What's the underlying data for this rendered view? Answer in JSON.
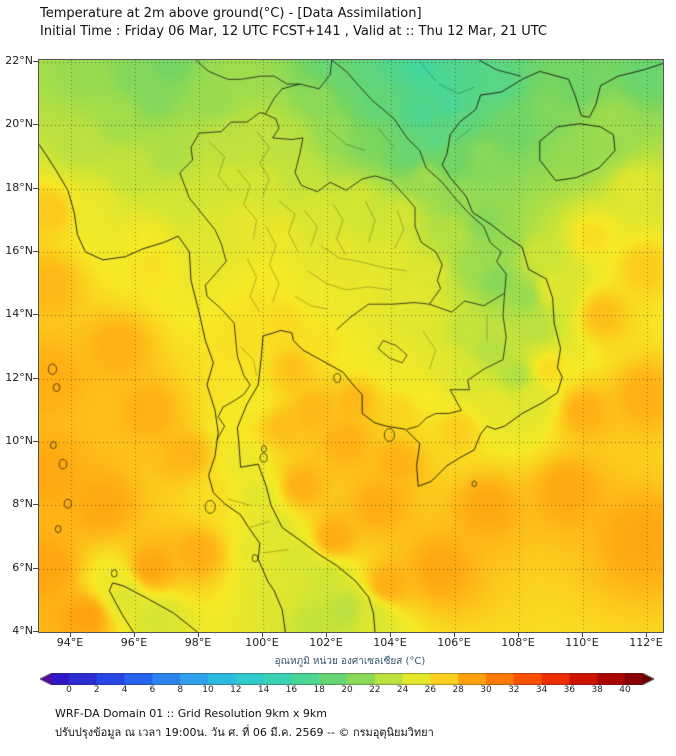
{
  "header": {
    "title": "Temperature at 2m above ground(°C) - [Data Assimilation]",
    "subtitle": "Initial Time : Friday 06 Mar, 12 UTC FCST+141 , Valid at :: Thu 12 Mar, 21 UTC"
  },
  "colorbar": {
    "label": "อุณหภูมิ หน่วย องศาเซลเซียส (°C)",
    "min": 0,
    "max": 40,
    "ticks": [
      0,
      2,
      4,
      6,
      8,
      10,
      12,
      14,
      16,
      18,
      20,
      22,
      24,
      26,
      28,
      30,
      32,
      34,
      36,
      38,
      40
    ],
    "stops": [
      [
        0,
        "#2e22c8"
      ],
      [
        4,
        "#2453ee"
      ],
      [
        8,
        "#2f95ef"
      ],
      [
        12,
        "#2cc6da"
      ],
      [
        16,
        "#3fd6a4"
      ],
      [
        20,
        "#74d563"
      ],
      [
        24,
        "#d2e534"
      ],
      [
        26,
        "#f7e926"
      ],
      [
        28,
        "#ffb516"
      ],
      [
        30,
        "#ff8d08"
      ],
      [
        32,
        "#ff6400"
      ],
      [
        34,
        "#f93c00"
      ],
      [
        36,
        "#e31c00"
      ],
      [
        38,
        "#bc0700"
      ],
      [
        40,
        "#940000"
      ]
    ]
  },
  "footer": {
    "line1": "WRF-DA Domain 01 :: Grid Resolution 9km x 9km",
    "line2": "ปรับปรุงข้อมูล ณ เวลา 19:00น. วัน ศ. ที่ 06 มี.ค. 2569 -- © กรมอุตุนิยมวิทยา"
  },
  "chart_data": {
    "type": "heatmap",
    "title": "Temperature at 2m above ground(°C) - [Data Assimilation]",
    "units": "°C",
    "lon_range": [
      93,
      112.5
    ],
    "lat_range": [
      4,
      22.06
    ],
    "lon_ticks": {
      "values": [
        94,
        96,
        98,
        100,
        102,
        104,
        106,
        108,
        110,
        112
      ],
      "labels": [
        "94°E",
        "96°E",
        "98°E",
        "100°E",
        "102°E",
        "104°E",
        "106°E",
        "108°E",
        "110°E",
        "112°E"
      ]
    },
    "lat_ticks": {
      "values": [
        22,
        20,
        18,
        16,
        14,
        12,
        10,
        8,
        6,
        4
      ],
      "labels": [
        "22°N",
        "20°N",
        "18°N",
        "16°N",
        "14°N",
        "12°N",
        "10°N",
        "8°N",
        "6°N",
        "4°N"
      ]
    },
    "colorbar_range": [
      0,
      40
    ],
    "colorbar_tick_step": 2,
    "temperature_points_lon_lat_degC": [
      [
        93.3,
        6,
        28.8
      ],
      [
        93.3,
        9,
        28.6
      ],
      [
        93.3,
        12,
        28.3
      ],
      [
        93.3,
        15,
        27.9
      ],
      [
        93.4,
        17.3,
        27.2
      ],
      [
        95.5,
        13,
        28.2
      ],
      [
        96.5,
        11,
        28.2
      ],
      [
        97.6,
        9.6,
        28.0
      ],
      [
        95.0,
        8,
        28.6
      ],
      [
        96.5,
        6,
        28.7
      ],
      [
        94.5,
        4.5,
        28.9
      ],
      [
        98.0,
        6.5,
        28.3
      ],
      [
        100.9,
        12.3,
        27.5
      ],
      [
        101.6,
        11,
        27.9
      ],
      [
        102.6,
        10,
        28.2
      ],
      [
        101.2,
        8.6,
        28.2
      ],
      [
        102.2,
        7,
        28.4
      ],
      [
        103.6,
        8,
        28.4
      ],
      [
        104.2,
        9.4,
        28.1
      ],
      [
        102.9,
        11.3,
        27.9
      ],
      [
        100.6,
        10.5,
        27.6
      ],
      [
        107.0,
        8,
        28.6
      ],
      [
        109.5,
        8.5,
        28.6
      ],
      [
        111.8,
        7,
        28.7
      ],
      [
        105.5,
        6,
        28.7
      ],
      [
        103.9,
        5.5,
        28.3
      ],
      [
        110.0,
        11,
        28.2
      ],
      [
        111.9,
        11.5,
        28.2
      ],
      [
        110.6,
        14,
        27.6
      ],
      [
        111.9,
        15.5,
        27.1
      ],
      [
        110.3,
        16.5,
        26.4
      ],
      [
        111.6,
        18,
        24.8
      ],
      [
        110.9,
        20.1,
        21.8
      ],
      [
        111.9,
        21.6,
        19.3
      ],
      [
        109.9,
        21.3,
        19.8
      ],
      [
        107.9,
        19.9,
        19.8
      ],
      [
        106.9,
        19.1,
        20.8
      ],
      [
        108.9,
        20.5,
        20.5
      ],
      [
        94.5,
        21.6,
        21.5
      ],
      [
        96.0,
        21.6,
        20.6
      ],
      [
        97.1,
        21.9,
        20.0
      ],
      [
        95.5,
        20.2,
        22.0
      ],
      [
        96.6,
        20.9,
        20.6
      ],
      [
        94.3,
        19.5,
        23.0
      ],
      [
        95.8,
        18.6,
        23.4
      ],
      [
        97.1,
        19.1,
        22.4
      ],
      [
        98.4,
        20.9,
        21.6
      ],
      [
        99.5,
        21.6,
        21.8
      ],
      [
        94.7,
        17.4,
        25.3
      ],
      [
        96.3,
        16.3,
        25.8
      ],
      [
        97.6,
        17.6,
        24.0
      ],
      [
        96.5,
        15.6,
        26.3
      ],
      [
        98.8,
        19.3,
        23.2
      ],
      [
        99.9,
        19.8,
        23.2
      ],
      [
        100.9,
        19.5,
        23.0
      ],
      [
        98.9,
        18.3,
        24.0
      ],
      [
        100.0,
        18,
        24.2
      ],
      [
        101.1,
        18.4,
        23.4
      ],
      [
        99.5,
        17,
        25.1
      ],
      [
        100.5,
        16.5,
        25.4
      ],
      [
        98.4,
        16.6,
        24.8
      ],
      [
        101.8,
        17.2,
        24.4
      ],
      [
        103.0,
        17.6,
        24.0
      ],
      [
        104.3,
        17.1,
        24.2
      ],
      [
        102.5,
        16,
        25.1
      ],
      [
        104.0,
        15.8,
        25.0
      ],
      [
        105.1,
        15.3,
        24.7
      ],
      [
        102.0,
        15,
        25.4
      ],
      [
        103.2,
        14.8,
        25.3
      ],
      [
        104.7,
        14.6,
        25.0
      ],
      [
        100.2,
        15.3,
        26.0
      ],
      [
        99.8,
        14.2,
        26.3
      ],
      [
        100.6,
        13.8,
        26.6
      ],
      [
        99.6,
        12.4,
        26.2
      ],
      [
        99.8,
        11.3,
        25.9
      ],
      [
        99.4,
        13.3,
        26.4
      ],
      [
        101.9,
        13.1,
        26.3
      ],
      [
        102.9,
        12.7,
        25.9
      ],
      [
        103.8,
        13,
        25.2
      ],
      [
        104.4,
        12.4,
        25.6
      ],
      [
        105.5,
        12.5,
        25.0
      ],
      [
        106.3,
        12.1,
        24.4
      ],
      [
        105.1,
        11.4,
        26.0
      ],
      [
        106.1,
        10.4,
        27.0
      ],
      [
        105.1,
        13.8,
        24.8
      ],
      [
        106.3,
        13.5,
        23.4
      ],
      [
        107.1,
        12.9,
        22.8
      ],
      [
        107.9,
        12.1,
        22.6
      ],
      [
        108.4,
        11.4,
        24.8
      ],
      [
        107.3,
        11.2,
        25.2
      ],
      [
        108.9,
        12.3,
        26.5
      ],
      [
        104.3,
        10.9,
        26.8
      ],
      [
        102.2,
        19.8,
        21.4
      ],
      [
        103.3,
        19.5,
        20.4
      ],
      [
        104.5,
        19.1,
        19.2
      ],
      [
        101.8,
        20.9,
        21.0
      ],
      [
        103.5,
        20.6,
        18.8
      ],
      [
        104.9,
        20.4,
        17.2
      ],
      [
        105.9,
        20.6,
        16.8
      ],
      [
        105.3,
        19.6,
        18.2
      ],
      [
        105.9,
        18.9,
        19.8
      ],
      [
        105.1,
        18.3,
        21.8
      ],
      [
        106.2,
        17.6,
        21.4
      ],
      [
        106.9,
        16.9,
        20.8
      ],
      [
        107.5,
        16.3,
        21.4
      ],
      [
        105.9,
        16.6,
        22.8
      ],
      [
        106.6,
        15.6,
        21.8
      ],
      [
        107.3,
        15.1,
        20.8
      ],
      [
        108.2,
        14.6,
        21.6
      ],
      [
        108.6,
        15.9,
        23.8
      ],
      [
        104.9,
        21.9,
        16.3
      ],
      [
        105.6,
        21.3,
        16.9
      ],
      [
        106.4,
        21.6,
        17.4
      ],
      [
        107.4,
        21.3,
        17.9
      ],
      [
        104.1,
        22.0,
        17.3
      ],
      [
        103.2,
        21.7,
        18.4
      ],
      [
        102.5,
        21.4,
        19.4
      ],
      [
        102.1,
        22.0,
        19.0
      ],
      [
        106.2,
        20.2,
        18.5
      ],
      [
        109.8,
        19.2,
        21.4
      ],
      [
        110.6,
        19.4,
        21.6
      ],
      [
        108.5,
        13.6,
        23.0
      ],
      [
        109.0,
        14.8,
        24.8
      ],
      [
        98.9,
        10.6,
        26.0
      ],
      [
        99.4,
        9.4,
        25.4
      ],
      [
        99.9,
        8.3,
        25.0
      ],
      [
        100.4,
        7.2,
        24.7
      ],
      [
        101.1,
        6.3,
        24.4
      ],
      [
        101.9,
        5.6,
        23.9
      ],
      [
        102.6,
        4.7,
        23.0
      ],
      [
        101.6,
        4.3,
        23.4
      ],
      [
        103.4,
        4.5,
        24.5
      ],
      [
        100.4,
        5.3,
        24.7
      ],
      [
        100.0,
        6.6,
        25.1
      ],
      [
        98.5,
        8.2,
        26.4
      ],
      [
        95.7,
        5.1,
        24.6
      ],
      [
        96.7,
        4.4,
        24.2
      ],
      [
        95.3,
        5.6,
        25.5
      ]
    ]
  }
}
